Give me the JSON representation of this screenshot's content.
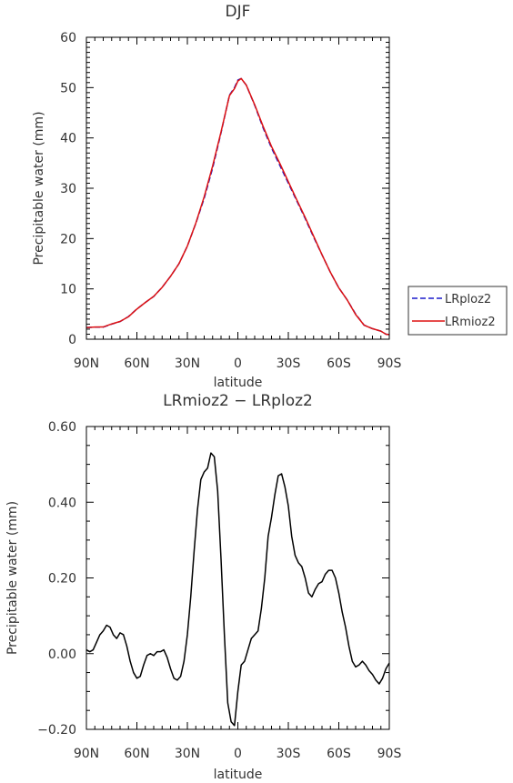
{
  "chart_data": [
    {
      "type": "line",
      "title": "DJF",
      "xlabel": "latitude",
      "ylabel": "Precipitable water (mm)",
      "xlim": [
        90,
        -90
      ],
      "ylim": [
        0,
        60
      ],
      "xticks": [
        90,
        60,
        30,
        0,
        -30,
        -60,
        -90
      ],
      "xtick_labels": [
        "90N",
        "60N",
        "30N",
        "0",
        "30S",
        "60S",
        "90S"
      ],
      "yticks": [
        0,
        10,
        20,
        30,
        40,
        50,
        60
      ],
      "ytick_labels": [
        "0",
        "10",
        "20",
        "30",
        "40",
        "50",
        "60"
      ],
      "grid": false,
      "legend": "right",
      "series": [
        {
          "name": "LRploz2",
          "color": "#1a1acc",
          "style": "dashed",
          "x": [
            90,
            85,
            80,
            75,
            70,
            65,
            60,
            55,
            50,
            45,
            40,
            35,
            30,
            25,
            20,
            15,
            10,
            5,
            2,
            0,
            -2,
            -5,
            -10,
            -15,
            -20,
            -25,
            -30,
            -35,
            -40,
            -45,
            -50,
            -55,
            -60,
            -65,
            -70,
            -75,
            -80,
            -85,
            -88,
            -90
          ],
          "y": [
            2.3,
            2.4,
            2.4,
            3.0,
            3.5,
            4.5,
            6.0,
            7.3,
            8.5,
            10.3,
            12.5,
            15.0,
            18.5,
            23.0,
            28.0,
            34.0,
            41.0,
            48.5,
            50.0,
            51.5,
            51.8,
            50.5,
            46.5,
            42.0,
            38.0,
            34.5,
            31.0,
            27.5,
            24.0,
            20.3,
            16.8,
            13.3,
            10.2,
            7.8,
            5.0,
            2.8,
            2.1,
            1.6,
            1.0,
            0.9
          ]
        },
        {
          "name": "LRmioz2",
          "color": "#dd1111",
          "style": "solid",
          "x": [
            90,
            85,
            80,
            75,
            70,
            65,
            60,
            55,
            50,
            45,
            40,
            35,
            30,
            25,
            20,
            15,
            10,
            5,
            2,
            0,
            -2,
            -5,
            -10,
            -15,
            -20,
            -25,
            -30,
            -35,
            -40,
            -45,
            -50,
            -55,
            -60,
            -65,
            -70,
            -75,
            -80,
            -85,
            -88,
            -90
          ],
          "y": [
            2.31,
            2.41,
            2.43,
            3.03,
            3.53,
            4.47,
            5.99,
            7.3,
            8.51,
            10.31,
            12.5,
            15.0,
            18.52,
            23.05,
            28.32,
            34.42,
            41.2,
            48.4,
            49.8,
            51.3,
            51.8,
            50.5,
            46.6,
            42.3,
            38.3,
            34.9,
            31.3,
            27.7,
            24.2,
            20.5,
            16.8,
            13.3,
            10.2,
            7.8,
            4.9,
            2.8,
            2.1,
            1.6,
            1.0,
            0.9
          ]
        }
      ]
    },
    {
      "type": "line",
      "title": "LRmioz2 − LRploz2",
      "xlabel": "latitude",
      "ylabel": "Precipitable water (mm)",
      "xlim": [
        90,
        -90
      ],
      "ylim": [
        -0.2,
        0.6
      ],
      "xticks": [
        90,
        60,
        30,
        0,
        -30,
        -60,
        -90
      ],
      "xtick_labels": [
        "90N",
        "60N",
        "30N",
        "0",
        "30S",
        "60S",
        "90S"
      ],
      "yticks": [
        -0.2,
        0.0,
        0.2,
        0.4,
        0.6
      ],
      "ytick_labels": [
        "−0.20",
        "0.00",
        "0.20",
        "0.40",
        "0.60"
      ],
      "grid": false,
      "series": [
        {
          "name": "",
          "color": "#000000",
          "style": "solid",
          "x": [
            90,
            88,
            86,
            84,
            82,
            80,
            78,
            76,
            74,
            72,
            70,
            68,
            66,
            64,
            62,
            60,
            58,
            56,
            54,
            52,
            50,
            48,
            46,
            44,
            42,
            40,
            38,
            36,
            34,
            32,
            30,
            28,
            26,
            24,
            22,
            20,
            18,
            16,
            14,
            12,
            10,
            8,
            6,
            4,
            2,
            0,
            -2,
            -4,
            -6,
            -8,
            -10,
            -12,
            -14,
            -16,
            -18,
            -20,
            -22,
            -24,
            -26,
            -28,
            -30,
            -32,
            -34,
            -36,
            -38,
            -40,
            -42,
            -44,
            -46,
            -48,
            -50,
            -52,
            -54,
            -56,
            -58,
            -60,
            -62,
            -64,
            -66,
            -68,
            -70,
            -72,
            -74,
            -76,
            -78,
            -80,
            -82,
            -84,
            -86,
            -88,
            -90
          ],
          "y": [
            0.01,
            0.005,
            0.01,
            0.03,
            0.05,
            0.06,
            0.075,
            0.07,
            0.05,
            0.04,
            0.055,
            0.05,
            0.02,
            -0.02,
            -0.05,
            -0.065,
            -0.06,
            -0.03,
            -0.005,
            0.0,
            -0.005,
            0.005,
            0.005,
            0.01,
            -0.01,
            -0.04,
            -0.065,
            -0.07,
            -0.06,
            -0.02,
            0.05,
            0.15,
            0.27,
            0.38,
            0.46,
            0.48,
            0.49,
            0.53,
            0.52,
            0.43,
            0.25,
            0.05,
            -0.13,
            -0.18,
            -0.19,
            -0.1,
            -0.03,
            -0.02,
            0.01,
            0.04,
            0.05,
            0.06,
            0.12,
            0.2,
            0.31,
            0.36,
            0.42,
            0.47,
            0.475,
            0.44,
            0.39,
            0.31,
            0.26,
            0.24,
            0.23,
            0.2,
            0.16,
            0.15,
            0.17,
            0.185,
            0.19,
            0.21,
            0.22,
            0.22,
            0.2,
            0.16,
            0.11,
            0.07,
            0.02,
            -0.02,
            -0.035,
            -0.03,
            -0.02,
            -0.03,
            -0.045,
            -0.055,
            -0.07,
            -0.08,
            -0.065,
            -0.04,
            -0.025
          ]
        }
      ]
    }
  ]
}
